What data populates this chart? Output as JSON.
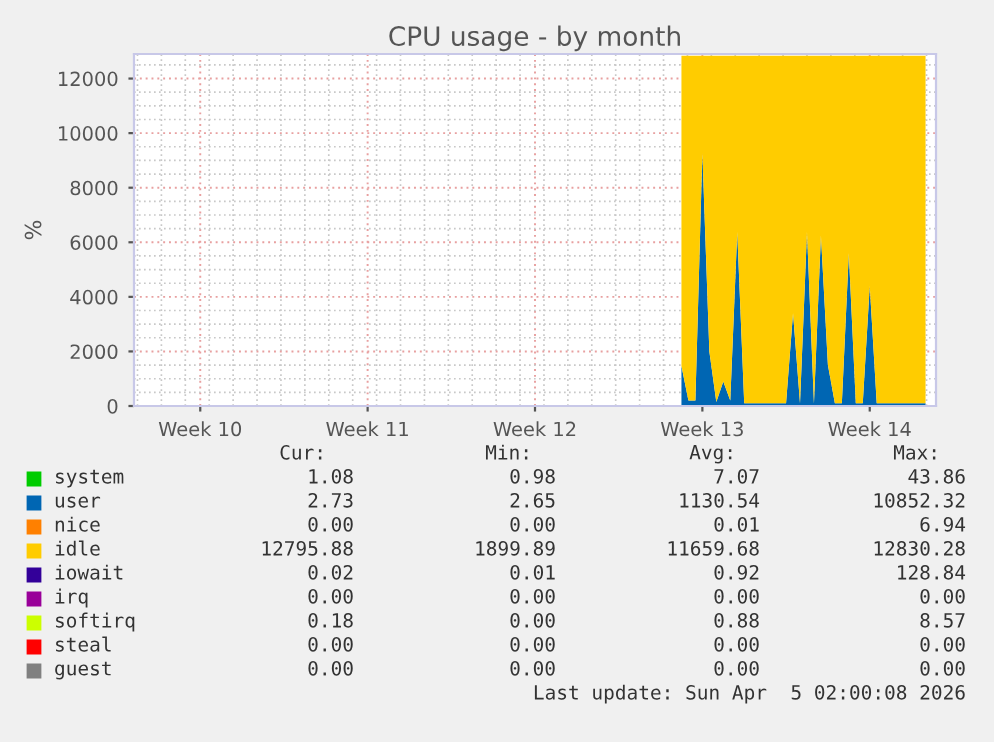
{
  "chart_data": {
    "type": "area",
    "stacked": true,
    "title": "CPU usage - by month",
    "ylabel": "%",
    "categories": [
      null,
      null,
      null,
      null,
      null,
      null,
      null,
      null,
      null,
      "Week 10",
      null,
      null,
      null,
      null,
      null,
      null,
      null,
      null,
      null,
      null,
      null,
      null,
      null,
      null,
      null,
      null,
      null,
      null,
      null,
      null,
      null,
      null,
      null,
      "Week 11",
      null,
      null,
      null,
      null,
      null,
      null,
      null,
      null,
      null,
      null,
      null,
      null,
      null,
      null,
      null,
      null,
      null,
      null,
      null,
      null,
      null,
      null,
      null,
      "Week 12",
      null,
      null,
      null,
      null,
      null,
      null,
      null,
      null,
      null,
      null,
      null,
      null,
      null,
      null,
      null,
      null,
      null,
      null,
      null,
      null,
      null,
      null,
      null,
      "Week 13",
      null,
      null,
      null,
      null,
      null,
      null,
      null,
      null,
      null,
      null,
      null,
      null,
      null,
      null,
      null,
      null,
      null,
      null,
      null,
      null,
      null,
      null,
      null,
      "Week 14",
      null,
      null,
      null,
      null,
      null,
      null,
      null,
      null,
      null
    ],
    "ylim": [
      0,
      12900
    ],
    "yticks": [
      0,
      2000,
      4000,
      6000,
      8000,
      10000,
      12000
    ],
    "grid": true,
    "legend": "bottom",
    "series": [
      {
        "name": "system",
        "color": "#00cc00",
        "values": [
          null,
          null,
          null,
          null,
          null,
          null,
          null,
          null,
          null,
          null,
          null,
          null,
          null,
          null,
          null,
          null,
          null,
          null,
          null,
          null,
          null,
          null,
          null,
          null,
          null,
          null,
          null,
          null,
          null,
          null,
          null,
          null,
          null,
          null,
          null,
          null,
          null,
          null,
          null,
          null,
          null,
          null,
          null,
          null,
          null,
          null,
          null,
          null,
          null,
          null,
          null,
          null,
          null,
          null,
          null,
          null,
          null,
          null,
          null,
          null,
          null,
          null,
          null,
          null,
          null,
          null,
          null,
          null,
          null,
          null,
          null,
          null,
          null,
          null,
          null,
          null,
          null,
          null,
          null,
          null,
          null,
          null,
          null,
          null,
          null,
          null,
          null,
          null,
          null,
          null,
          null,
          null,
          null,
          null,
          null,
          null,
          null,
          null,
          null,
          null,
          null,
          null,
          null,
          null,
          null,
          null,
          null,
          null,
          null,
          null,
          null,
          null,
          null,
          null,
          null
        ]
      },
      {
        "name": "user",
        "color": "#0066b3",
        "values": [
          null,
          null,
          null,
          null,
          null,
          null,
          null,
          null,
          null,
          null,
          null,
          null,
          null,
          null,
          null,
          null,
          null,
          null,
          null,
          null,
          null,
          null,
          null,
          null,
          null,
          null,
          null,
          null,
          null,
          null,
          null,
          null,
          null,
          null,
          null,
          null,
          null,
          null,
          null,
          null,
          null,
          null,
          null,
          null,
          null,
          null,
          null,
          null,
          null,
          null,
          null,
          null,
          null,
          null,
          null,
          null,
          null,
          null,
          null,
          null,
          null,
          null,
          null,
          null,
          null,
          null,
          null,
          null,
          null,
          null,
          null,
          null,
          null,
          null,
          null,
          null,
          null,
          null,
          1470,
          200,
          200,
          9270,
          2000,
          150,
          900,
          200,
          6380,
          100,
          100,
          100,
          100,
          100,
          100,
          100,
          3400,
          100,
          6380,
          100,
          6250,
          1500,
          100,
          100,
          5600,
          100,
          100,
          4400,
          100,
          100,
          100,
          100,
          100,
          100,
          100,
          100,
          null
        ]
      },
      {
        "name": "nice",
        "color": "#ff8000",
        "values": [
          null,
          null,
          null,
          null,
          null,
          null,
          null,
          null,
          null,
          null,
          null,
          null,
          null,
          null,
          null,
          null,
          null,
          null,
          null,
          null,
          null,
          null,
          null,
          null,
          null,
          null,
          null,
          null,
          null,
          null,
          null,
          null,
          null,
          null,
          null,
          null,
          null,
          null,
          null,
          null,
          null,
          null,
          null,
          null,
          null,
          null,
          null,
          null,
          null,
          null,
          null,
          null,
          null,
          null,
          null,
          null,
          null,
          null,
          null,
          null,
          null,
          null,
          null,
          null,
          null,
          null,
          null,
          null,
          null,
          null,
          null,
          null,
          null,
          null,
          null,
          null,
          null,
          null,
          null,
          null,
          null,
          null,
          null,
          null,
          null,
          null,
          null,
          null,
          null,
          null,
          null,
          null,
          null,
          null,
          null,
          null,
          null,
          null,
          null,
          null,
          null,
          null,
          null,
          null,
          null,
          null,
          null,
          null,
          null,
          null,
          null,
          null,
          null,
          null,
          null
        ]
      },
      {
        "name": "idle",
        "color": "#ffcc00",
        "values": [
          null,
          null,
          null,
          null,
          null,
          null,
          null,
          null,
          null,
          null,
          null,
          null,
          null,
          null,
          null,
          null,
          null,
          null,
          null,
          null,
          null,
          null,
          null,
          null,
          null,
          null,
          null,
          null,
          null,
          null,
          null,
          null,
          null,
          null,
          null,
          null,
          null,
          null,
          null,
          null,
          null,
          null,
          null,
          null,
          null,
          null,
          null,
          null,
          null,
          null,
          null,
          null,
          null,
          null,
          null,
          null,
          null,
          null,
          null,
          null,
          null,
          null,
          null,
          null,
          null,
          null,
          null,
          null,
          null,
          null,
          null,
          null,
          null,
          null,
          null,
          null,
          null,
          null,
          11370,
          12640,
          12640,
          3570,
          10840,
          12690,
          11940,
          12640,
          6460,
          12740,
          12740,
          12740,
          12740,
          12740,
          12740,
          12740,
          9440,
          12740,
          6460,
          12740,
          6590,
          11340,
          12740,
          12740,
          7240,
          12740,
          12740,
          8440,
          12740,
          12740,
          12740,
          12740,
          12740,
          12740,
          12740,
          12740,
          null
        ]
      },
      {
        "name": "iowait",
        "color": "#330099",
        "values": [
          null,
          null,
          null,
          null,
          null,
          null,
          null,
          null,
          null,
          null,
          null,
          null,
          null,
          null,
          null,
          null,
          null,
          null,
          null,
          null,
          null,
          null,
          null,
          null,
          null,
          null,
          null,
          null,
          null,
          null,
          null,
          null,
          null,
          null,
          null,
          null,
          null,
          null,
          null,
          null,
          null,
          null,
          null,
          null,
          null,
          null,
          null,
          null,
          null,
          null,
          null,
          null,
          null,
          null,
          null,
          null,
          null,
          null,
          null,
          null,
          null,
          null,
          null,
          null,
          null,
          null,
          null,
          null,
          null,
          null,
          null,
          null,
          null,
          null,
          null,
          null,
          null,
          null,
          null,
          null,
          null,
          null,
          null,
          null,
          null,
          null,
          null,
          null,
          null,
          null,
          null,
          null,
          null,
          null,
          null,
          null,
          null,
          null,
          null,
          null,
          null,
          null,
          null,
          null,
          null,
          null,
          null,
          null,
          null,
          null,
          null,
          null,
          null,
          null,
          null
        ]
      },
      {
        "name": "irq",
        "color": "#990099",
        "values": [
          null,
          null,
          null,
          null,
          null,
          null,
          null,
          null,
          null,
          null,
          null,
          null,
          null,
          null,
          null,
          null,
          null,
          null,
          null,
          null,
          null,
          null,
          null,
          null,
          null,
          null,
          null,
          null,
          null,
          null,
          null,
          null,
          null,
          null,
          null,
          null,
          null,
          null,
          null,
          null,
          null,
          null,
          null,
          null,
          null,
          null,
          null,
          null,
          null,
          null,
          null,
          null,
          null,
          null,
          null,
          null,
          null,
          null,
          null,
          null,
          null,
          null,
          null,
          null,
          null,
          null,
          null,
          null,
          null,
          null,
          null,
          null,
          null,
          null,
          null,
          null,
          null,
          null,
          null,
          null,
          null,
          null,
          null,
          null,
          null,
          null,
          null,
          null,
          null,
          null,
          null,
          null,
          null,
          null,
          null,
          null,
          null,
          null,
          null,
          null,
          null,
          null,
          null,
          null,
          null,
          null,
          null,
          null,
          null,
          null,
          null,
          null,
          null,
          null,
          null
        ]
      },
      {
        "name": "softirq",
        "color": "#ccff00",
        "values": [
          null,
          null,
          null,
          null,
          null,
          null,
          null,
          null,
          null,
          null,
          null,
          null,
          null,
          null,
          null,
          null,
          null,
          null,
          null,
          null,
          null,
          null,
          null,
          null,
          null,
          null,
          null,
          null,
          null,
          null,
          null,
          null,
          null,
          null,
          null,
          null,
          null,
          null,
          null,
          null,
          null,
          null,
          null,
          null,
          null,
          null,
          null,
          null,
          null,
          null,
          null,
          null,
          null,
          null,
          null,
          null,
          null,
          null,
          null,
          null,
          null,
          null,
          null,
          null,
          null,
          null,
          null,
          null,
          null,
          null,
          null,
          null,
          null,
          null,
          null,
          null,
          null,
          null,
          null,
          null,
          null,
          null,
          null,
          null,
          null,
          null,
          null,
          null,
          null,
          null,
          null,
          null,
          null,
          null,
          null,
          null,
          null,
          null,
          null,
          null,
          null,
          null,
          null,
          null,
          null,
          null,
          null,
          null,
          null,
          null,
          null,
          null,
          null,
          null,
          null
        ]
      },
      {
        "name": "steal",
        "color": "#ff0000",
        "values": [
          null,
          null,
          null,
          null,
          null,
          null,
          null,
          null,
          null,
          null,
          null,
          null,
          null,
          null,
          null,
          null,
          null,
          null,
          null,
          null,
          null,
          null,
          null,
          null,
          null,
          null,
          null,
          null,
          null,
          null,
          null,
          null,
          null,
          null,
          null,
          null,
          null,
          null,
          null,
          null,
          null,
          null,
          null,
          null,
          null,
          null,
          null,
          null,
          null,
          null,
          null,
          null,
          null,
          null,
          null,
          null,
          null,
          null,
          null,
          null,
          null,
          null,
          null,
          null,
          null,
          null,
          null,
          null,
          null,
          null,
          null,
          null,
          null,
          null,
          null,
          null,
          null,
          null,
          null,
          null,
          null,
          null,
          null,
          null,
          null,
          null,
          null,
          null,
          null,
          null,
          null,
          null,
          null,
          null,
          null,
          null,
          null,
          null,
          null,
          null,
          null,
          null,
          null,
          null,
          null,
          null,
          null,
          null,
          null,
          null,
          null,
          null,
          null,
          null,
          null
        ]
      },
      {
        "name": "guest",
        "color": "#808080",
        "values": [
          null,
          null,
          null,
          null,
          null,
          null,
          null,
          null,
          null,
          null,
          null,
          null,
          null,
          null,
          null,
          null,
          null,
          null,
          null,
          null,
          null,
          null,
          null,
          null,
          null,
          null,
          null,
          null,
          null,
          null,
          null,
          null,
          null,
          null,
          null,
          null,
          null,
          null,
          null,
          null,
          null,
          null,
          null,
          null,
          null,
          null,
          null,
          null,
          null,
          null,
          null,
          null,
          null,
          null,
          null,
          null,
          null,
          null,
          null,
          null,
          null,
          null,
          null,
          null,
          null,
          null,
          null,
          null,
          null,
          null,
          null,
          null,
          null,
          null,
          null,
          null,
          null,
          null,
          null,
          null,
          null,
          null,
          null,
          null,
          null,
          null,
          null,
          null,
          null,
          null,
          null,
          null,
          null,
          null,
          null,
          null,
          null,
          null,
          null,
          null,
          null,
          null,
          null,
          null,
          null,
          null,
          null,
          null,
          null,
          null,
          null,
          null,
          null,
          null,
          null
        ]
      }
    ],
    "annotations": [
      "Cur:",
      "Min:",
      "Avg:",
      "Max:",
      "1.08",
      "0.98",
      "7.07",
      "43.86",
      "2.73",
      "2.65",
      "1130.54",
      "10852.32",
      "0.00",
      "0.00",
      "0.01",
      "6.94",
      "12795.88",
      "1899.89",
      "11659.68",
      "12830.28",
      "0.02",
      "0.01",
      "0.92",
      "128.84",
      "0.00",
      "0.00",
      "0.00",
      "0.00",
      "0.18",
      "0.00",
      "0.88",
      "8.57",
      "0.00",
      "0.00",
      "0.00",
      "0.00",
      "0.00",
      "0.00",
      "0.00",
      "0.00",
      "Last update: Sun Apr  5 02:00:08 2026"
    ]
  }
}
